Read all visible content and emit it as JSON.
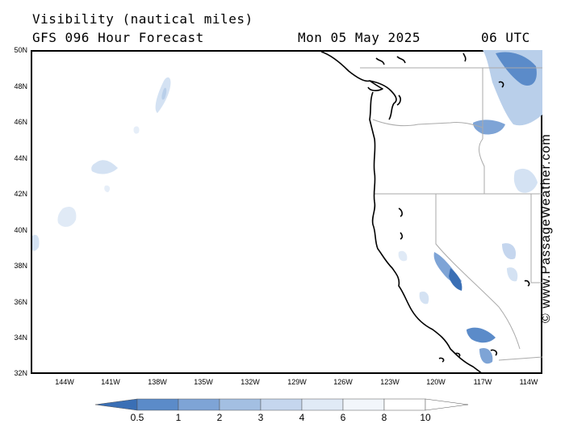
{
  "header": {
    "title": "Visibility (nautical miles)",
    "subtitle": "GFS 096 Hour Forecast",
    "date": "Mon 05 May 2025",
    "time": "06 UTC"
  },
  "map": {
    "lat_labels": [
      "50N",
      "48N",
      "46N",
      "44N",
      "42N",
      "40N",
      "38N",
      "36N",
      "34N",
      "32N"
    ],
    "lon_labels": [
      "144W",
      "141W",
      "138W",
      "135W",
      "132W",
      "129W",
      "126W",
      "123W",
      "120W",
      "117W",
      "114W"
    ],
    "lat_range": [
      32,
      50
    ],
    "lon_range": [
      -146,
      -113
    ],
    "features": [
      "Pacific Ocean",
      "US West Coast",
      "Vancouver Island",
      "Washington",
      "Oregon",
      "California",
      "Nevada",
      "Idaho"
    ]
  },
  "legend": {
    "scale_labels": [
      "0.5",
      "1",
      "2",
      "3",
      "4",
      "6",
      "8",
      "10"
    ],
    "colors": [
      "#3a6fb5",
      "#5b8bc9",
      "#7ea4d6",
      "#a3bfe2",
      "#c5d6ee",
      "#e0eaf6",
      "#f2f6fb",
      "#ffffff"
    ]
  },
  "watermark": "© www.PassageWeather.com"
}
